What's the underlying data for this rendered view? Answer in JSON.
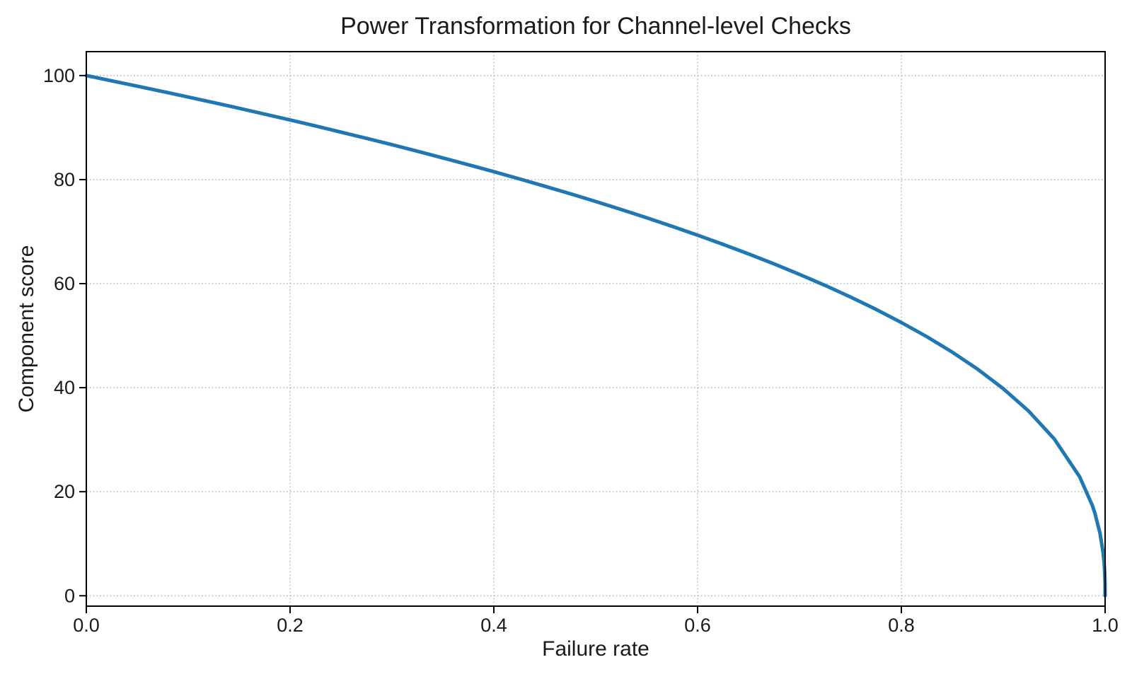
{
  "chart_data": {
    "type": "line",
    "title": "Power Transformation for Channel-level Checks",
    "xlabel": "Failure rate",
    "ylabel": "Component score",
    "xlim": [
      0,
      1
    ],
    "ylim": [
      -2,
      104.6
    ],
    "xticks": {
      "values": [
        0,
        0.2,
        0.4,
        0.6,
        0.8,
        1.0
      ],
      "labels": [
        "0.0",
        "0.2",
        "0.4",
        "0.6",
        "0.8",
        "1.0"
      ]
    },
    "yticks": {
      "values": [
        0,
        20,
        40,
        60,
        80,
        100
      ],
      "labels": [
        "0",
        "20",
        "40",
        "60",
        "80",
        "100"
      ]
    },
    "grid": {
      "visible": true,
      "style": "dotted",
      "color": "#c6c6c6"
    },
    "legend": {
      "visible": false
    },
    "spine_color": "#000000",
    "series": [
      {
        "name": "component score",
        "color": "#1f77b4",
        "linewidth": 5,
        "formula": "y = 100 * (1 - x)^0.4",
        "x": [
          0,
          0.025,
          0.05,
          0.075,
          0.1,
          0.125,
          0.15,
          0.175,
          0.2,
          0.225,
          0.25,
          0.275,
          0.3,
          0.325,
          0.35,
          0.375,
          0.4,
          0.425,
          0.45,
          0.475,
          0.5,
          0.525,
          0.55,
          0.575,
          0.6,
          0.625,
          0.65,
          0.675,
          0.7,
          0.725,
          0.75,
          0.775,
          0.8,
          0.825,
          0.85,
          0.875,
          0.9,
          0.925,
          0.95,
          0.975,
          0.9875,
          0.99,
          0.995,
          0.998,
          0.999,
          0.9995,
          0.9999,
          1.0
        ],
        "y": [
          100,
          98.99,
          97.97,
          96.93,
          95.87,
          94.8,
          93.71,
          92.59,
          91.46,
          90.31,
          89.13,
          87.93,
          86.7,
          85.45,
          84.17,
          82.86,
          81.52,
          80.14,
          78.73,
          77.28,
          75.79,
          74.25,
          72.66,
          71.02,
          69.31,
          67.55,
          65.71,
          63.79,
          61.78,
          59.67,
          57.43,
          55.07,
          52.53,
          49.8,
          46.82,
          43.53,
          39.81,
          35.48,
          30.17,
          22.87,
          17.33,
          15.85,
          12.01,
          8.33,
          6.31,
          4.78,
          2.51,
          0
        ]
      }
    ]
  }
}
